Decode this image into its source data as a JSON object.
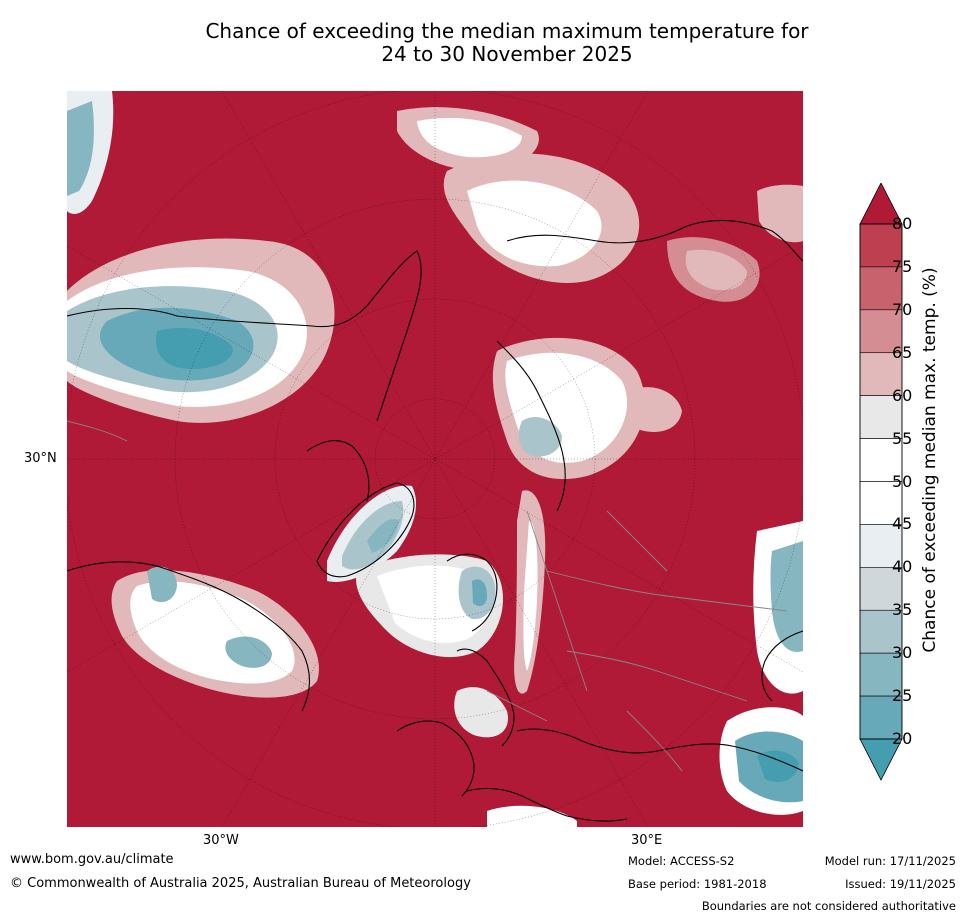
{
  "title": {
    "line1": "Chance of exceeding the median maximum temperature for",
    "line2": "24 to 30 November 2025"
  },
  "axes": {
    "lat_label": "30°N",
    "lon_label_left": "30°W",
    "lon_label_right": "30°E"
  },
  "colorbar": {
    "label": "Chance of exceeding median max. temp. (%)",
    "ticks": [
      "80",
      "75",
      "70",
      "65",
      "60",
      "55",
      "50",
      "45",
      "40",
      "35",
      "30",
      "25",
      "20"
    ],
    "colors": {
      "80plus": "#b01a36",
      "75-80": "#bd3f50",
      "70-75": "#c8636d",
      "65-70": "#d48e93",
      "60-65": "#e2b9bb",
      "55-60": "#e8e8e8",
      "50-55": "#ffffff",
      "45-50": "#ffffff",
      "40-45": "#e8eef1",
      "35-40": "#d0d7da",
      "30-35": "#a9c5cb",
      "25-30": "#86b7c1",
      "20-25": "#67a9b8",
      "below20": "#459eb0"
    }
  },
  "footer": {
    "website": "www.bom.gov.au/climate",
    "copyright": "© Commonwealth of Australia 2025, Australian Bureau of Meteorology",
    "model": "Model: ACCESS-S2",
    "base_period": "Base period: 1981-2018",
    "model_run": "Model run: 17/11/2025",
    "issued": "Issued: 19/11/2025",
    "disclaimer": "Boundaries are not considered authoritative"
  }
}
